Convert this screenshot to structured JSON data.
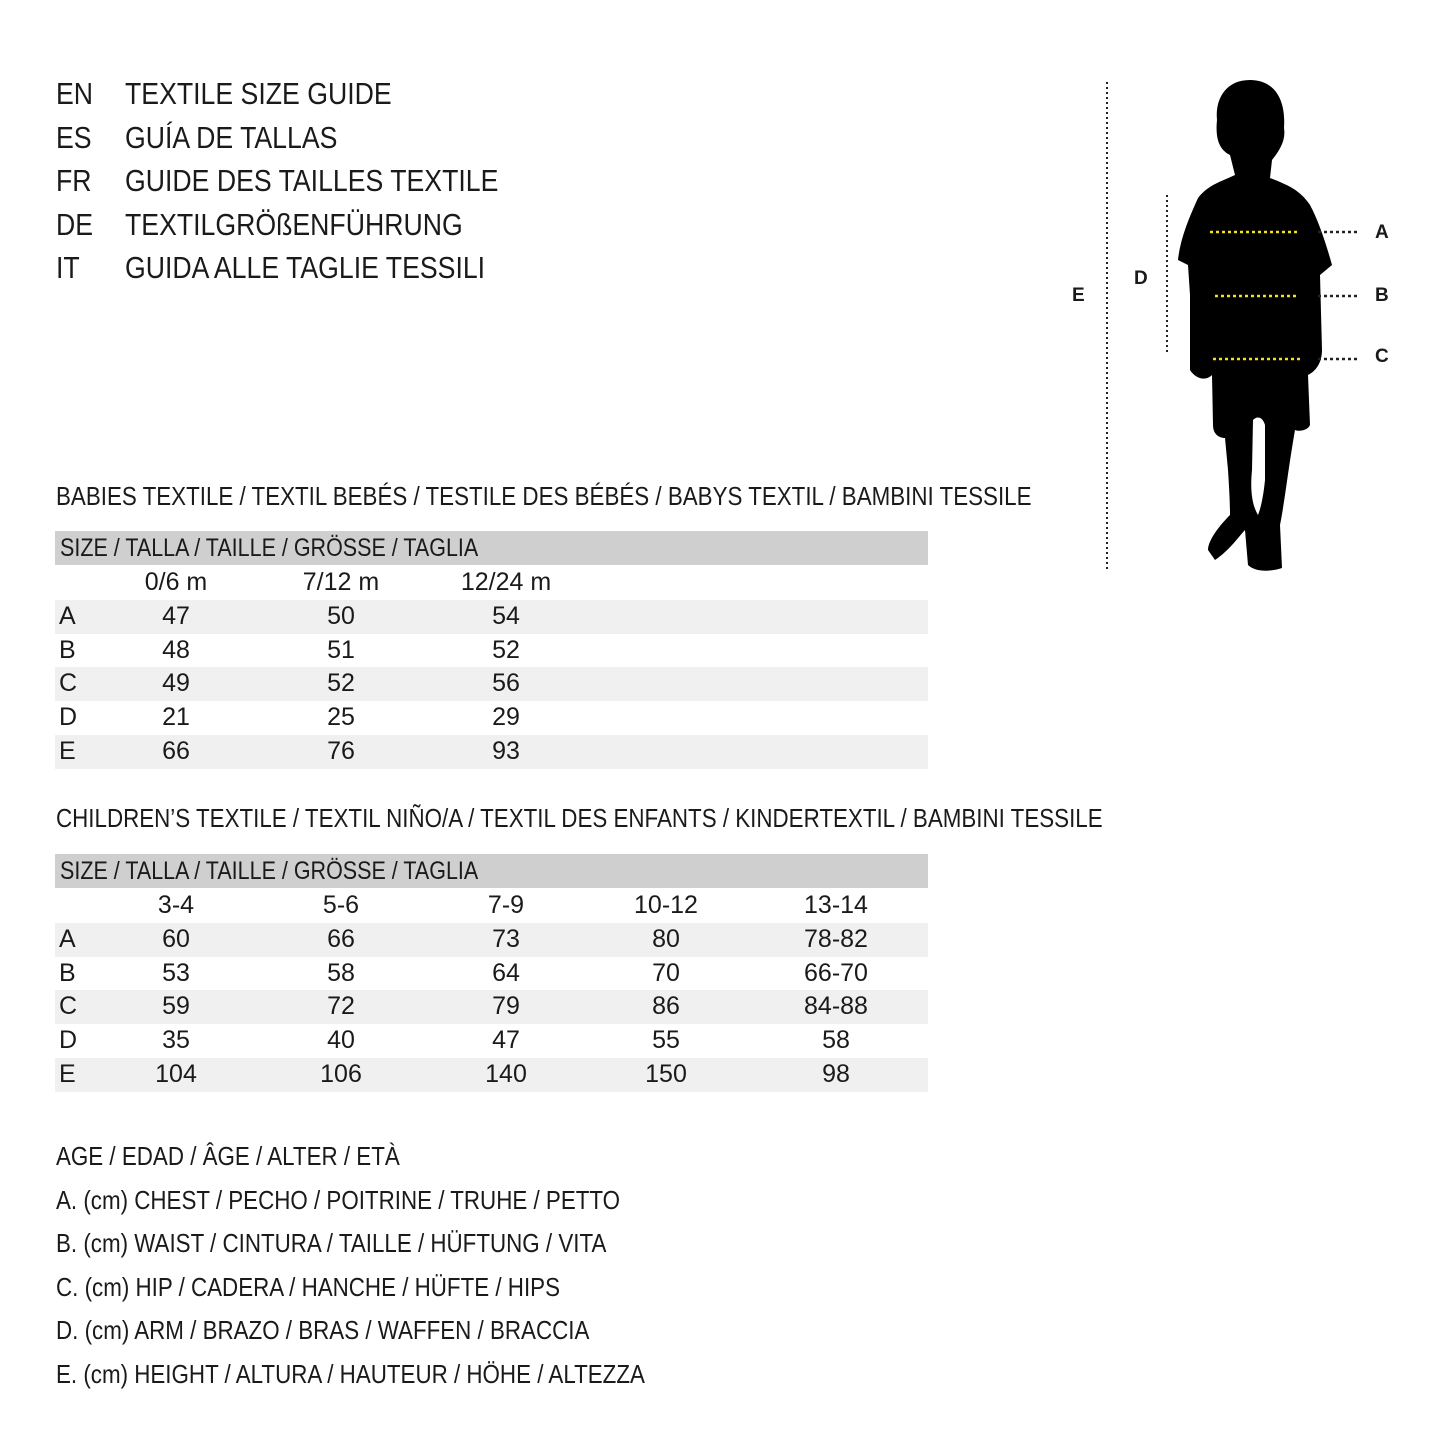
{
  "titles": [
    {
      "code": "EN",
      "text": "TEXTILE SIZE GUIDE"
    },
    {
      "code": "ES",
      "text": "GUÍA DE TALLAS"
    },
    {
      "code": "FR",
      "text": "GUIDE DES TAILLES TEXTILE"
    },
    {
      "code": "DE",
      "text": "TEXTILGRÖßENFÜHRUNG"
    },
    {
      "code": "IT",
      "text": "GUIDA ALLE TAGLIE TESSILI"
    }
  ],
  "figure": {
    "labels": {
      "a": "A",
      "b": "B",
      "c": "C",
      "d": "D",
      "e": "E"
    },
    "measure_line_color": "#f2e21b"
  },
  "babies": {
    "title": "BABIES TEXTILE / TEXTIL BEBÉS / TESTILE DES BÉBÉS / BABYS TEXTIL / BAMBINI TESSILE",
    "header": "SIZE / TALLA / TAILLE / GRÖSSE / TAGLIA",
    "columns": [
      "0/6 m",
      "7/12 m",
      "12/24 m"
    ],
    "rows": [
      {
        "label": "A",
        "values": [
          "47",
          "50",
          "54"
        ]
      },
      {
        "label": "B",
        "values": [
          "48",
          "51",
          "52"
        ]
      },
      {
        "label": "C",
        "values": [
          "49",
          "52",
          "56"
        ]
      },
      {
        "label": "D",
        "values": [
          "21",
          "25",
          "29"
        ]
      },
      {
        "label": "E",
        "values": [
          "66",
          "76",
          "93"
        ]
      }
    ]
  },
  "children": {
    "title": "CHILDREN’S TEXTILE / TEXTIL NIÑO/A / TEXTIL DES ENFANTS / KINDERTEXTIL / BAMBINI TESSILE",
    "header": "SIZE / TALLA / TAILLE / GRÖSSE / TAGLIA",
    "columns": [
      "3-4",
      "5-6",
      "7-9",
      "10-12",
      "13-14"
    ],
    "rows": [
      {
        "label": "A",
        "values": [
          "60",
          "66",
          "73",
          "80",
          "78-82"
        ]
      },
      {
        "label": "B",
        "values": [
          "53",
          "58",
          "64",
          "70",
          "66-70"
        ]
      },
      {
        "label": "C",
        "values": [
          "59",
          "72",
          "79",
          "86",
          "84-88"
        ]
      },
      {
        "label": "D",
        "values": [
          "35",
          "40",
          "47",
          "55",
          "58"
        ]
      },
      {
        "label": "E",
        "values": [
          "104",
          "106",
          "140",
          "150",
          "98"
        ]
      }
    ]
  },
  "legend": [
    "AGE / EDAD / ÂGE / ALTER / ETÀ",
    "A. (cm) CHEST / PECHO / POITRINE / TRUHE / PETTO",
    "B. (cm) WAIST / CINTURA / TAILLE / HÜFTUNG / VITA",
    "C. (cm) HIP / CADERA / HANCHE / HÜFTE / HIPS",
    "D. (cm) ARM / BRAZO / BRAS / WAFFEN / BRACCIA",
    "E. (cm) HEIGHT / ALTURA / HAUTEUR / HÖHE / ALTEZZA"
  ]
}
